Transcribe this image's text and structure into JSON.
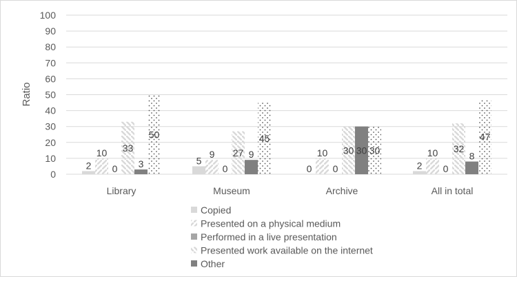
{
  "chart_data": {
    "type": "bar",
    "ylabel": "Ratio",
    "ylim": [
      0,
      100
    ],
    "yticks": [
      0,
      10,
      20,
      30,
      40,
      50,
      60,
      70,
      80,
      90,
      100
    ],
    "grid": true,
    "legend_position": "bottom",
    "categories": [
      "Library",
      "Museum",
      "Archive",
      "All in total"
    ],
    "series": [
      {
        "name": "Copied",
        "values": [
          2,
          5,
          0,
          2
        ],
        "fill": "solid-light",
        "color": "#d9d9d9"
      },
      {
        "name": "Presented on a physical medium",
        "values": [
          10,
          9,
          10,
          10
        ],
        "fill": "slash",
        "color": "#d9d9d9"
      },
      {
        "name": "Performed in a live presentation",
        "values": [
          0,
          0,
          0,
          0
        ],
        "fill": "solid-mid",
        "color": "#a6a6a6"
      },
      {
        "name": "Presented work available on the internet",
        "values": [
          33,
          27,
          30,
          32
        ],
        "fill": "backslash",
        "color": "#d9d9d9"
      },
      {
        "name": "Other",
        "values": [
          3,
          9,
          30,
          8
        ],
        "fill": "solid-dark",
        "color": "#808080"
      },
      {
        "name": "",
        "values": [
          50,
          45,
          30,
          47
        ],
        "fill": "dots",
        "color": "#595959"
      }
    ]
  }
}
